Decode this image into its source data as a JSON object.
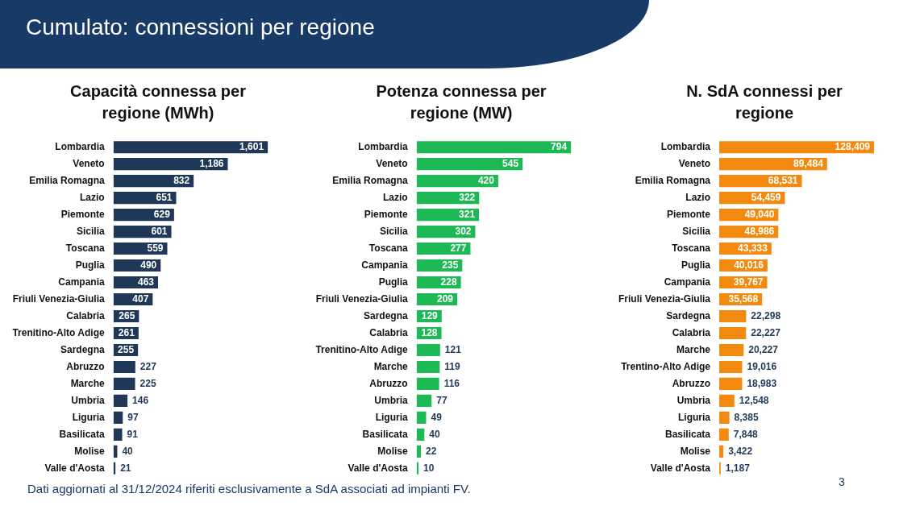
{
  "chart_data": [
    {
      "type": "other",
      "title": "Cumulato: connessioni per regione",
      "annotations": [
        "Dati aggiornati al 31/12/2024 riferiti esclusivamente a SdA associati ad impianti FV.",
        "3"
      ]
    },
    {
      "type": "bar",
      "orientation": "horizontal",
      "title": "Capacità connessa per regione (MWh)",
      "color": "#1f3857",
      "categories": [
        "Lombardia",
        "Veneto",
        "Emilia Romagna",
        "Lazio",
        "Piemonte",
        "Sicilia",
        "Toscana",
        "Puglia",
        "Campania",
        "Friuli Venezia-Giulia",
        "Calabria",
        "Trenitino-Alto Adige",
        "Sardegna",
        "Abruzzo",
        "Marche",
        "Umbria",
        "Liguria",
        "Basilicata",
        "Molise",
        "Valle d'Aosta"
      ],
      "values": [
        1601,
        1186,
        832,
        651,
        629,
        601,
        559,
        490,
        463,
        407,
        265,
        261,
        255,
        227,
        225,
        146,
        97,
        91,
        40,
        21
      ],
      "value_labels": [
        "1,601",
        "1,186",
        "832",
        "651",
        "629",
        "601",
        "559",
        "490",
        "463",
        "407",
        "265",
        "261",
        "255",
        "227",
        "225",
        "146",
        "97",
        "91",
        "40",
        "21"
      ]
    },
    {
      "type": "bar",
      "orientation": "horizontal",
      "title": "Potenza connessa per regione (MW)",
      "color": "#1db954",
      "categories": [
        "Lombardia",
        "Veneto",
        "Emilia Romagna",
        "Lazio",
        "Piemonte",
        "Sicilia",
        "Toscana",
        "Campania",
        "Puglia",
        "Friuli Venezia-Giulia",
        "Sardegna",
        "Calabria",
        "Trenitino-Alto Adige",
        "Marche",
        "Abruzzo",
        "Umbria",
        "Liguria",
        "Basilicata",
        "Molise",
        "Valle d'Aosta"
      ],
      "values": [
        794,
        545,
        420,
        322,
        321,
        302,
        277,
        235,
        228,
        209,
        129,
        128,
        121,
        119,
        116,
        77,
        49,
        40,
        22,
        10
      ],
      "value_labels": [
        "794",
        "545",
        "420",
        "322",
        "321",
        "302",
        "277",
        "235",
        "228",
        "209",
        "129",
        "128",
        "121",
        "119",
        "116",
        "77",
        "49",
        "40",
        "22",
        "10"
      ]
    },
    {
      "type": "bar",
      "orientation": "horizontal",
      "title": "N. SdA connessi per regione",
      "color": "#f28a0f",
      "categories": [
        "Lombardia",
        "Veneto",
        "Emilia Romagna",
        "Lazio",
        "Piemonte",
        "Sicilia",
        "Toscana",
        "Puglia",
        "Campania",
        "Friuli Venezia-Giulia",
        "Sardegna",
        "Calabria",
        "Marche",
        "Trentino-Alto Adige",
        "Abruzzo",
        "Umbria",
        "Liguria",
        "Basilicata",
        "Molise",
        "Valle d'Aosta"
      ],
      "values": [
        128409,
        89484,
        68531,
        54459,
        49040,
        48986,
        43333,
        40016,
        39767,
        35568,
        22298,
        22227,
        20227,
        19016,
        18983,
        12548,
        8385,
        7848,
        3422,
        1187
      ],
      "value_labels": [
        "128,409",
        "89,484",
        "68,531",
        "54,459",
        "49,040",
        "48,986",
        "43,333",
        "40,016",
        "39,767",
        "35,568",
        "22,298",
        "22,227",
        "20,227",
        "19,016",
        "18,983",
        "12,548",
        "8,385",
        "7,848",
        "3,422",
        "1,187"
      ]
    }
  ]
}
